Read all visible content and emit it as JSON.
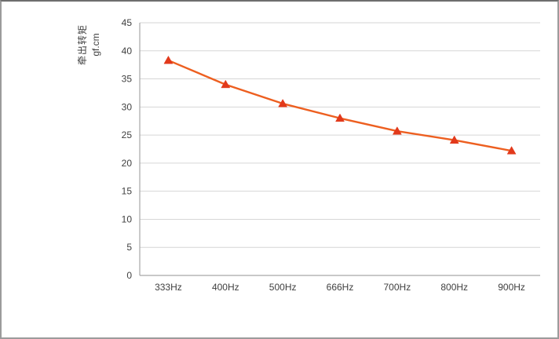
{
  "chart_data": {
    "type": "line",
    "title": "",
    "categories": [
      "333Hz",
      "400Hz",
      "500Hz",
      "666Hz",
      "700Hz",
      "800Hz",
      "900Hz"
    ],
    "series": [
      {
        "name": "牵出转矩",
        "values": [
          38.3,
          34.0,
          30.6,
          28.0,
          25.7,
          24.1,
          22.2
        ]
      }
    ],
    "xlabel": "",
    "ylabel": "牵出转矩 gf.cm",
    "ylabel_lines": [
      "牵出转矩",
      "gf.cm"
    ],
    "ylim": [
      0,
      45
    ],
    "yticks": [
      0,
      5,
      10,
      15,
      20,
      25,
      30,
      35,
      40,
      45
    ],
    "grid": "horizontal",
    "legend_position": "none",
    "marker": "triangle",
    "colors": {
      "line": "#ed5f20",
      "marker": "#e2391b",
      "gridline": "#d6d6d6",
      "axis": "#a6a6a6",
      "tick_text": "#3f3f3f",
      "background": "#ffffff"
    }
  }
}
